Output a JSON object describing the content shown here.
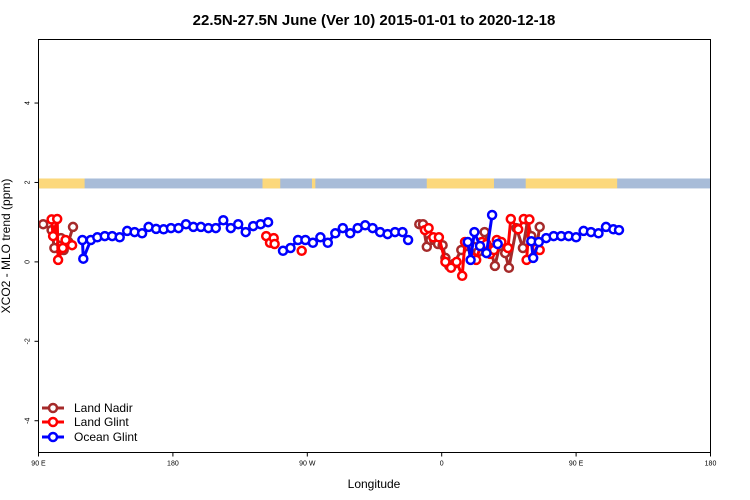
{
  "chart_data": {
    "type": "line",
    "title": "22.5N-27.5N June (Ver 10)   2015-01-01 to 2020-12-18",
    "xlabel": "Longitude",
    "ylabel": "XCO2 - MLO trend (ppm)",
    "xlim": [
      90,
      450
    ],
    "ylim": [
      -4.8,
      5.6
    ],
    "x_ticks": [
      {
        "value": 90,
        "label": "90 E"
      },
      {
        "value": 162,
        "label": "180"
      },
      {
        "value": 234,
        "label": "90 W"
      },
      {
        "value": 306,
        "label": "0"
      },
      {
        "value": 378,
        "label": "90 E"
      },
      {
        "value": 450,
        "label": "180"
      }
    ],
    "y_ticks": [
      {
        "value": -4,
        "label": "-4"
      },
      {
        "value": -2,
        "label": "-2"
      },
      {
        "value": 0,
        "label": "0"
      },
      {
        "value": 2,
        "label": "2"
      },
      {
        "value": 4,
        "label": "4"
      }
    ],
    "land_mask": {
      "y_range": [
        1.85,
        2.1
      ],
      "ocean_color": "#a8bcd8",
      "land_color": "#fcd87c",
      "land_segments": [
        [
          90,
          114.7
        ],
        [
          210,
          219.5
        ],
        [
          236.5,
          238.3
        ],
        [
          298,
          334
        ],
        [
          351,
          400
        ]
      ]
    },
    "series": [
      {
        "name": "Land Nadir",
        "color": "#a52a2a",
        "segments": [
          [
            [
              92.5,
              0.95
            ],
            [
              97,
              0.8
            ],
            [
              98.5,
              0.35
            ],
            [
              102,
              0.6
            ],
            [
              103.5,
              0.3
            ],
            [
              106,
              0.5
            ],
            [
              108.5,
              0.88
            ]
          ],
          [
            [
              294,
              0.95
            ],
            [
              296,
              0.95
            ],
            [
              298,
              0.38
            ],
            [
              300,
              0.55
            ],
            [
              302,
              0.55
            ],
            [
              304,
              0.45
            ],
            [
              306.5,
              0.42
            ],
            [
              308,
              0.1
            ],
            [
              310,
              -0.1
            ],
            [
              312.5,
              -0.05
            ],
            [
              316.5,
              0.3
            ],
            [
              320,
              0.4
            ],
            [
              323,
              0.38
            ],
            [
              325.5,
              0.25
            ],
            [
              329,
              0.75
            ],
            [
              332,
              0.35
            ],
            [
              334.5,
              -0.1
            ],
            [
              337,
              0.4
            ],
            [
              340,
              0.22
            ],
            [
              342,
              -0.15
            ],
            [
              346,
              0.85
            ],
            [
              349.5,
              0.35
            ],
            [
              352,
              1.05
            ],
            [
              354,
              0.65
            ],
            [
              357,
              0.42
            ],
            [
              358.5,
              0.88
            ]
          ]
        ]
      },
      {
        "name": "Land Glint",
        "color": "#ff0000",
        "segments": [
          [
            [
              97,
              1.07
            ],
            [
              97.8,
              0.65
            ],
            [
              100,
              1.08
            ],
            [
              100.5,
              0.05
            ],
            [
              103,
              0.35
            ],
            [
              104.5,
              0.55
            ],
            [
              108,
              0.42
            ]
          ],
          [
            [
              212,
              0.65
            ],
            [
              214,
              0.48
            ],
            [
              216,
              0.6
            ],
            [
              216.5,
              0.45
            ]
          ],
          [
            [
              231,
              0.28
            ]
          ],
          [
            [
              297,
              0.8
            ],
            [
              299,
              0.85
            ],
            [
              301.5,
              0.62
            ],
            [
              304.5,
              0.62
            ],
            [
              308,
              0.0
            ],
            [
              311,
              -0.15
            ],
            [
              314,
              0.0
            ],
            [
              317,
              -0.35
            ],
            [
              318.5,
              0.5
            ],
            [
              323,
              0.1
            ],
            [
              324.5,
              0.05
            ],
            [
              327.5,
              0.5
            ],
            [
              330,
              0.45
            ],
            [
              332,
              0.2
            ],
            [
              334,
              0.3
            ],
            [
              335.5,
              0.55
            ],
            [
              338,
              0.5
            ],
            [
              341.5,
              0.35
            ],
            [
              343,
              1.08
            ],
            [
              347,
              0.82
            ],
            [
              350,
              1.08
            ],
            [
              353,
              1.07
            ],
            [
              351.5,
              0.05
            ],
            [
              357,
              0.35
            ],
            [
              358.5,
              0.3
            ]
          ]
        ]
      },
      {
        "name": "Ocean Glint",
        "color": "#0000ff",
        "segments": [
          [
            [
              113.5,
              0.55
            ],
            [
              114,
              0.08
            ],
            [
              118,
              0.55
            ],
            [
              121.5,
              0.62
            ],
            [
              125.5,
              0.65
            ],
            [
              129.5,
              0.65
            ],
            [
              133.5,
              0.62
            ],
            [
              137.5,
              0.78
            ],
            [
              141.5,
              0.75
            ],
            [
              145.5,
              0.72
            ],
            [
              149,
              0.88
            ],
            [
              153,
              0.83
            ],
            [
              157,
              0.82
            ],
            [
              161,
              0.85
            ],
            [
              165,
              0.85
            ],
            [
              169,
              0.95
            ],
            [
              173,
              0.88
            ],
            [
              177,
              0.88
            ],
            [
              181,
              0.85
            ],
            [
              185,
              0.85
            ],
            [
              189,
              1.05
            ],
            [
              193,
              0.85
            ],
            [
              197,
              0.95
            ],
            [
              201,
              0.75
            ],
            [
              205,
              0.9
            ],
            [
              209,
              0.95
            ],
            [
              213,
              1.0
            ]
          ],
          [
            [
              221,
              0.28
            ],
            [
              225,
              0.35
            ],
            [
              229,
              0.55
            ],
            [
              233,
              0.55
            ],
            [
              237,
              0.48
            ],
            [
              241,
              0.62
            ],
            [
              245,
              0.48
            ],
            [
              249,
              0.72
            ],
            [
              253,
              0.85
            ],
            [
              257,
              0.72
            ],
            [
              261,
              0.85
            ],
            [
              265,
              0.92
            ],
            [
              269,
              0.85
            ],
            [
              273,
              0.75
            ],
            [
              277,
              0.7
            ],
            [
              281,
              0.75
            ],
            [
              285,
              0.75
            ],
            [
              288,
              0.55
            ]
          ],
          [
            [
              320,
              0.5
            ],
            [
              321.5,
              0.05
            ],
            [
              323.5,
              0.75
            ],
            [
              326.5,
              0.4
            ],
            [
              330,
              0.22
            ],
            [
              333,
              1.18
            ]
          ],
          [
            [
              336,
              0.45
            ]
          ],
          [
            [
              354,
              0.52
            ],
            [
              355,
              0.1
            ],
            [
              358,
              0.5
            ],
            [
              362,
              0.6
            ],
            [
              366,
              0.65
            ],
            [
              370,
              0.65
            ],
            [
              374,
              0.65
            ],
            [
              378,
              0.62
            ],
            [
              382,
              0.78
            ],
            [
              386,
              0.75
            ],
            [
              390,
              0.72
            ],
            [
              394,
              0.88
            ],
            [
              398,
              0.82
            ],
            [
              401,
              0.8
            ]
          ]
        ]
      }
    ],
    "legend": {
      "position": "bottom-left",
      "entries": [
        "Land Nadir",
        "Land Glint",
        "Ocean Glint"
      ]
    }
  }
}
